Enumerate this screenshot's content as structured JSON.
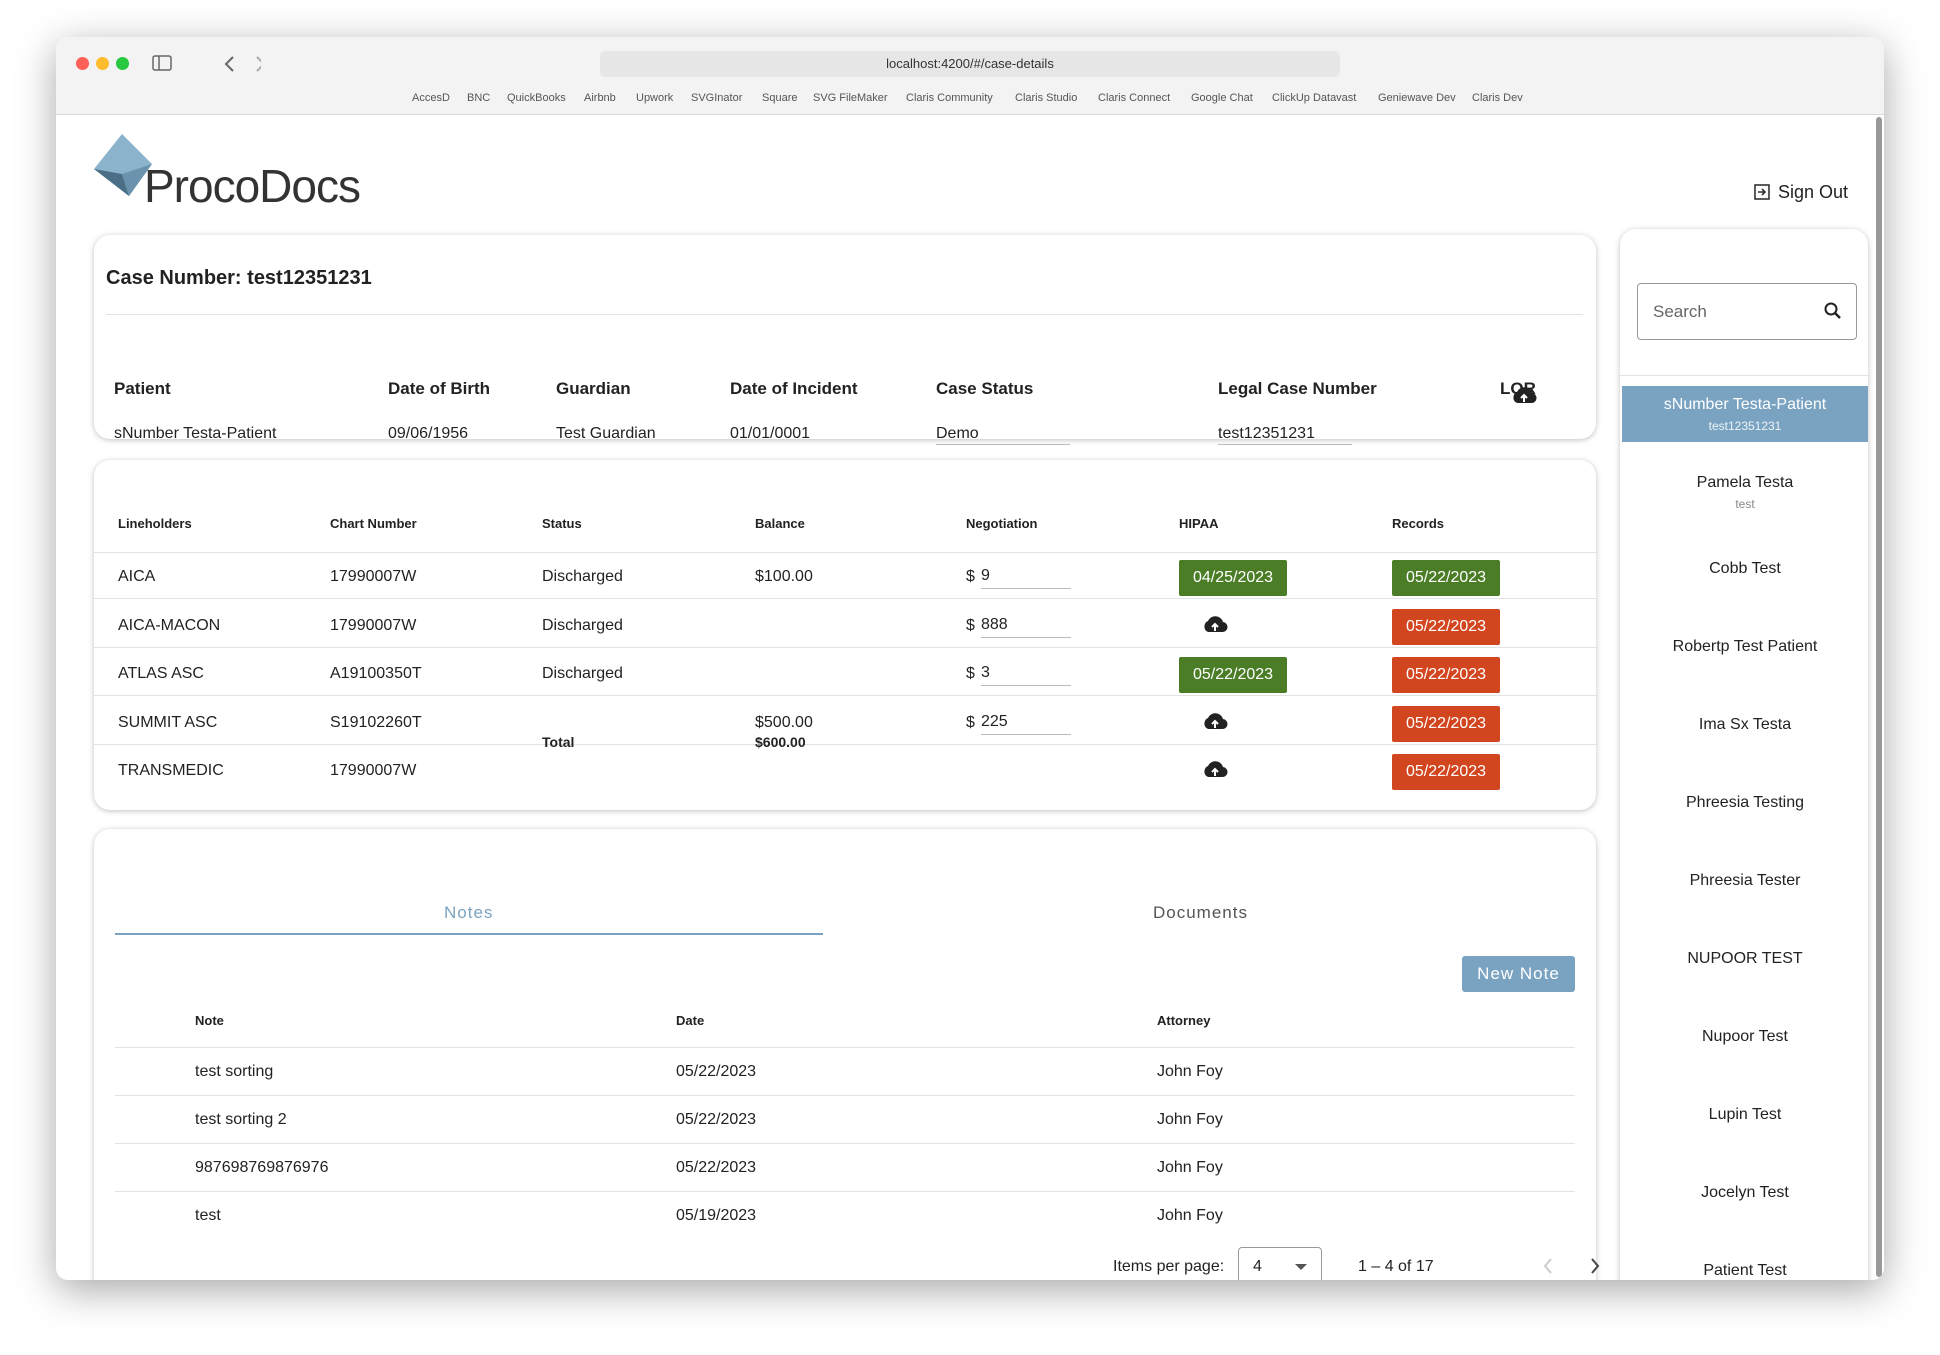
{
  "browser": {
    "url": "localhost:4200/#/case-details",
    "bookmarks": [
      "AccesD",
      "BNC",
      "QuickBooks",
      "Airbnb",
      "Upwork",
      "SVGInator",
      "Square",
      "SVG FileMaker",
      "Claris Community",
      "Claris Studio",
      "Claris Connect",
      "Google Chat",
      "ClickUp Datavast",
      "Geniewave Dev",
      "Claris Dev"
    ]
  },
  "header": {
    "logo": "ProcoDocs",
    "sign_out": "Sign Out"
  },
  "case": {
    "title": "Case Number: test12351231",
    "columns": [
      "Patient",
      "Date of Birth",
      "Guardian",
      "Date of Incident",
      "Case Status",
      "Legal Case Number",
      "LOR"
    ],
    "values": [
      "sNumber Testa-Patient",
      "09/06/1956",
      "Test Guardian",
      "01/01/0001",
      "Demo",
      "test12351231"
    ]
  },
  "lineholders": {
    "columns": [
      "Lineholders",
      "Chart Number",
      "Status",
      "Balance",
      "Negotiation",
      "HIPAA",
      "Records"
    ],
    "currency_symbol": "$",
    "rows": [
      {
        "name": "AICA",
        "chart": "17990007W",
        "status": "Discharged",
        "balance": "$100.00",
        "negotiation": "9",
        "hipaa": {
          "text": "04/25/2023",
          "color": "#4b7d27"
        },
        "records": {
          "text": "05/22/2023",
          "color": "#4b7d27"
        }
      },
      {
        "name": "AICA-MACON",
        "chart": "17990007W",
        "status": "Discharged",
        "balance": null,
        "negotiation": "888",
        "hipaa": null,
        "records": {
          "text": "05/22/2023",
          "color": "#d2461f"
        }
      },
      {
        "name": "ATLAS ASC",
        "chart": "A19100350T",
        "status": "Discharged",
        "balance": null,
        "negotiation": "3",
        "hipaa": {
          "text": "05/22/2023",
          "color": "#4b7d27"
        },
        "records": {
          "text": "05/22/2023",
          "color": "#d2461f"
        }
      },
      {
        "name": "SUMMIT ASC",
        "chart": "S19102260T",
        "status": null,
        "balance": "$500.00",
        "negotiation": "225",
        "hipaa": null,
        "records": {
          "text": "05/22/2023",
          "color": "#d2461f"
        }
      },
      {
        "name": "TRANSMEDIC",
        "chart": "17990007W",
        "status": null,
        "balance": null,
        "negotiation": null,
        "hipaa": null,
        "records": {
          "text": "05/22/2023",
          "color": "#d2461f"
        }
      }
    ],
    "total_label": "Total",
    "total_value": "$600.00"
  },
  "notes": {
    "tabs": [
      "Notes",
      "Documents"
    ],
    "new_note": "New Note",
    "columns": [
      "Note",
      "Date",
      "Attorney"
    ],
    "rows": [
      [
        "test sorting",
        "05/22/2023",
        "John Foy"
      ],
      [
        "test sorting 2",
        "05/22/2023",
        "John Foy"
      ],
      [
        "987698769876976",
        "05/22/2023",
        "John Foy"
      ],
      [
        "test",
        "05/19/2023",
        "John Foy"
      ]
    ],
    "pagination": {
      "label": "Items per page:",
      "page_size": "4",
      "range": "1 – 4 of 17"
    }
  },
  "sidebar": {
    "search_placeholder": "Search",
    "patients": [
      {
        "name": "sNumber Testa-Patient",
        "sub": "test12351231"
      },
      {
        "name": "Pamela Testa",
        "sub": "test"
      },
      {
        "name": "Cobb Test",
        "sub": null
      },
      {
        "name": "Robertp Test Patient",
        "sub": null
      },
      {
        "name": "Ima Sx Testa",
        "sub": null
      },
      {
        "name": "Phreesia Testing",
        "sub": null
      },
      {
        "name": "Phreesia Tester",
        "sub": null
      },
      {
        "name": "NUPOOR TEST",
        "sub": null
      },
      {
        "name": "Nupoor Test",
        "sub": null
      },
      {
        "name": "Lupin Test",
        "sub": null
      },
      {
        "name": "Jocelyn Test",
        "sub": null
      },
      {
        "name": "Patient Test",
        "sub": null
      }
    ]
  }
}
